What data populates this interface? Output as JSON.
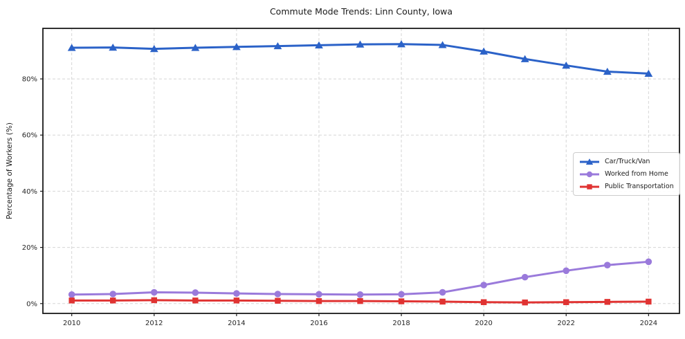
{
  "chart_data": {
    "type": "line",
    "title": "Commute Mode Trends: Linn County, Iowa",
    "xlabel": "",
    "ylabel": "Percentage of Workers (%)",
    "x": [
      2010,
      2011,
      2012,
      2013,
      2014,
      2015,
      2016,
      2017,
      2018,
      2019,
      2020,
      2021,
      2022,
      2023,
      2024
    ],
    "x_ticks": [
      2010,
      2012,
      2014,
      2016,
      2018,
      2020,
      2022,
      2024
    ],
    "y_ticks": [
      0,
      20,
      40,
      60,
      80
    ],
    "y_tick_suffix": "%",
    "xlim": [
      2009.3,
      2024.75
    ],
    "ylim": [
      -3.5,
      98
    ],
    "grid": true,
    "grid_style": "dashed",
    "legend_position": "center right",
    "frame_color": "#1a1a1a",
    "grid_color": "#d5d5d5",
    "series": [
      {
        "name": "Car/Truck/Van",
        "color": "#2b62c8",
        "marker": "triangle",
        "values": [
          91.1,
          91.2,
          90.7,
          91.1,
          91.4,
          91.7,
          92.0,
          92.3,
          92.4,
          92.1,
          89.8,
          87.1,
          84.8,
          82.6,
          81.9
        ]
      },
      {
        "name": "Worked from Home",
        "color": "#9a7adb",
        "marker": "circle",
        "values": [
          3.2,
          3.4,
          4.0,
          3.9,
          3.6,
          3.4,
          3.3,
          3.2,
          3.3,
          4.0,
          6.6,
          9.4,
          11.7,
          13.7,
          14.9
        ]
      },
      {
        "name": "Public Transportation",
        "color": "#e03332",
        "marker": "square",
        "values": [
          1.1,
          1.1,
          1.2,
          1.1,
          1.1,
          1.0,
          0.9,
          0.9,
          0.8,
          0.7,
          0.5,
          0.4,
          0.5,
          0.6,
          0.7
        ]
      }
    ]
  }
}
